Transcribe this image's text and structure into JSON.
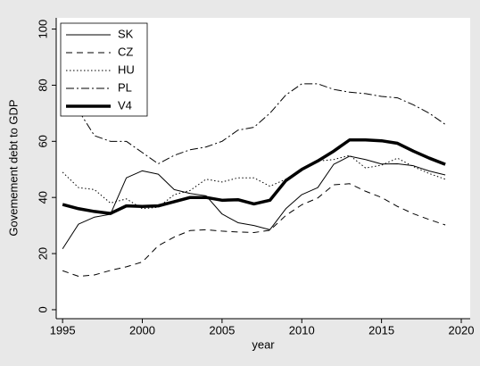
{
  "chart_data": {
    "type": "line",
    "y_label": "Govemement debt to GDP",
    "x_label": "year",
    "x": [
      1995,
      1996,
      1997,
      1998,
      1999,
      2000,
      2001,
      2002,
      2003,
      2004,
      2005,
      2006,
      2007,
      2008,
      2009,
      2010,
      2011,
      2012,
      2013,
      2014,
      2015,
      2016,
      2017,
      2018,
      2019
    ],
    "series": [
      {
        "name": "SK",
        "color": "#000000",
        "width": 1,
        "dash": "none",
        "values": [
          21.7,
          30.5,
          33,
          34,
          47,
          49.5,
          48.3,
          42.8,
          41.4,
          40.6,
          34.1,
          31,
          30,
          28.5,
          36,
          41,
          43.5,
          51.8,
          54.7,
          53.5,
          51.9,
          52,
          51.3,
          49.4,
          48
        ]
      },
      {
        "name": "CZ",
        "color": "#000000",
        "width": 1,
        "dash": "7 5",
        "values": [
          13.9,
          11.9,
          12.4,
          14,
          15.3,
          17,
          22.8,
          25.9,
          28.2,
          28.5,
          28,
          27.7,
          27.5,
          28.3,
          33.6,
          37.4,
          39.8,
          44.5,
          44.9,
          42.2,
          40,
          36.8,
          34.2,
          32.1,
          30.2
        ]
      },
      {
        "name": "HU",
        "color": "#000000",
        "width": 1,
        "dash": "1.5 2.5",
        "values": [
          49,
          43.5,
          42.8,
          38,
          39.5,
          36,
          36.5,
          41,
          42.5,
          46.5,
          45.5,
          47,
          47,
          44,
          46.5,
          49.5,
          53,
          53.5,
          55,
          50.5,
          51.5,
          54,
          51,
          48.5,
          46.5
        ]
      },
      {
        "name": "PL",
        "color": "#000000",
        "width": 1,
        "dash": "9 3 2 3",
        "values": [
          null,
          71,
          62,
          60,
          60,
          56,
          52,
          55,
          57,
          58,
          60,
          64,
          65,
          70,
          76.5,
          80.5,
          80.5,
          78.5,
          77.5,
          77,
          76,
          75.5,
          73,
          70,
          66
        ]
      },
      {
        "name": "V4",
        "color": "#000000",
        "width": 3.5,
        "dash": "none",
        "values": [
          37.5,
          36,
          35,
          34.3,
          37,
          36.8,
          37,
          38.5,
          40,
          40,
          39,
          39.2,
          37.7,
          39,
          46,
          50,
          53,
          56.5,
          60.5,
          60.5,
          60.2,
          59.3,
          56.5,
          54,
          51.8
        ]
      }
    ],
    "xlim": [
      1994.6,
      2020.56
    ],
    "ylim": [
      -3.2,
      104
    ],
    "xticks": [
      1995,
      2000,
      2005,
      2010,
      2015,
      2020
    ],
    "yticks": [
      0,
      20,
      40,
      60,
      80,
      100
    ],
    "grid": false,
    "legend": "top-left"
  }
}
